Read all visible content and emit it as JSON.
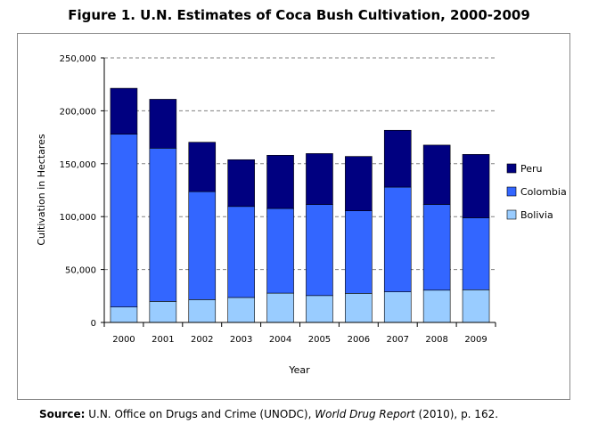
{
  "figure_title": "Figure 1. U.N. Estimates of Coca Bush Cultivation, 2000-2009",
  "source": {
    "label": "Source:",
    "text_before": "U.N. Office on Drugs and Crime (UNODC),",
    "italic": "World Drug Report",
    "text_after": "(2010), p. 162."
  },
  "chart_data": {
    "type": "bar",
    "stacked": true,
    "title": "Figure 1. U.N. Estimates of Coca Bush Cultivation, 2000-2009",
    "xlabel": "Year",
    "ylabel": "Cultivation in Hectares",
    "categories": [
      "2000",
      "2001",
      "2002",
      "2003",
      "2004",
      "2005",
      "2006",
      "2007",
      "2008",
      "2009"
    ],
    "ylim": [
      0,
      250000
    ],
    "yticks": [
      0,
      50000,
      100000,
      150000,
      200000,
      250000
    ],
    "ytick_labels": [
      "0",
      "50,000",
      "100,000",
      "150,000",
      "200,000",
      "250,000"
    ],
    "grid": "horizontal dashed",
    "legend_position": "right",
    "series": [
      {
        "name": "Bolivia",
        "color": "#99ccff",
        "values": [
          14600,
          19900,
          21600,
          23600,
          27700,
          25400,
          27500,
          28900,
          30500,
          30900
        ]
      },
      {
        "name": "Colombia",
        "color": "#3366ff",
        "values": [
          163300,
          144800,
          102000,
          86000,
          80000,
          86000,
          78000,
          99000,
          81000,
          68000
        ]
      },
      {
        "name": "Peru",
        "color": "#000080",
        "values": [
          43400,
          46200,
          46700,
          44200,
          50300,
          48200,
          51400,
          53700,
          56100,
          59900
        ]
      }
    ],
    "legend_order": [
      "Peru",
      "Colombia",
      "Bolivia"
    ]
  }
}
